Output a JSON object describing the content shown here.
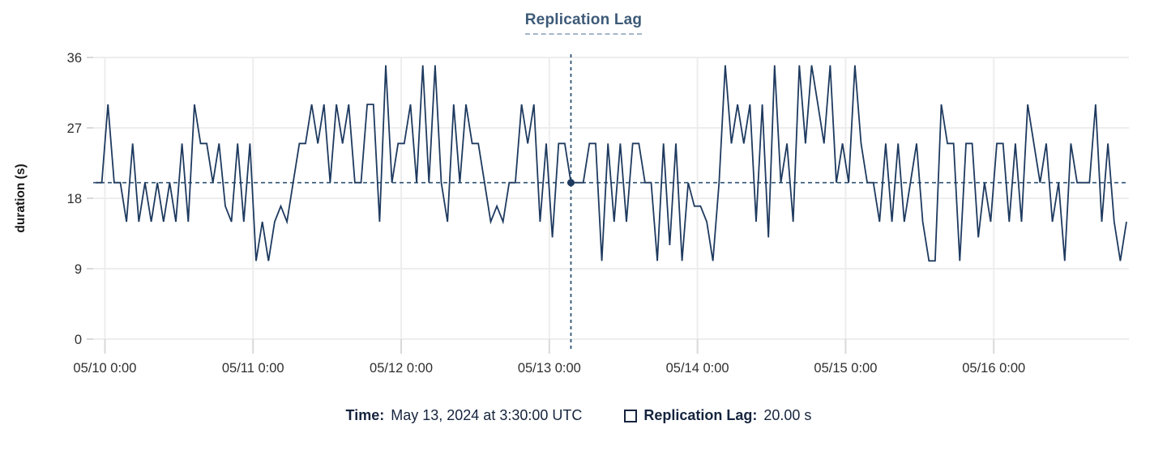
{
  "title": "Replication Lag",
  "colors": {
    "line": "#1e3a5f",
    "dot": "#1e3a5f",
    "crosshair": "#2f5373",
    "grid": "#ededed",
    "tick_stub": "#d9d9d9",
    "axis_text": "#2f2f2f",
    "title_text": "#3d5a78",
    "legend_text": "#16243e"
  },
  "tooltip": {
    "time_label": "Time:",
    "time_value": "May 13, 2024 at 3:30:00 UTC",
    "series_label": "Replication Lag:",
    "series_value": "20.00 s"
  },
  "chart_data": {
    "type": "line",
    "title": "Replication Lag",
    "xlabel": "",
    "ylabel": "duration (s)",
    "ylim": [
      0,
      36
    ],
    "y_ticks": [
      0,
      9,
      18,
      27,
      36
    ],
    "x_tick_labels": [
      "05/10 0:00",
      "05/11 0:00",
      "05/12 0:00",
      "05/13 0:00",
      "05/14 0:00",
      "05/15 0:00",
      "05/16 0:00"
    ],
    "x_tick_hours": [
      1.5,
      25.5,
      49.5,
      73.5,
      97.5,
      121.5,
      145.5
    ],
    "grid": true,
    "legend_position": "bottom",
    "series": [
      {
        "name": "Replication Lag",
        "unit": "s",
        "start": "2024-05-09 22:30 UTC",
        "interval_hours": 1,
        "values": [
          20,
          20,
          30,
          20,
          20,
          15,
          25,
          15,
          20,
          15,
          20,
          15,
          20,
          15,
          25,
          15,
          30,
          25,
          25,
          20,
          25,
          17,
          15,
          25,
          15,
          25,
          10,
          15,
          10,
          15,
          17,
          15,
          20,
          25,
          25,
          30,
          25,
          30,
          20,
          30,
          25,
          30,
          20,
          20,
          30,
          30,
          15,
          35,
          20,
          25,
          25,
          30,
          20,
          35,
          20,
          35,
          20,
          15,
          30,
          20,
          30,
          25,
          25,
          20,
          15,
          17,
          15,
          20,
          20,
          30,
          25,
          30,
          15,
          25,
          13,
          25,
          25,
          20,
          20,
          20,
          25,
          25,
          10,
          25,
          15,
          25,
          15,
          25,
          25,
          20,
          20,
          10,
          25,
          12,
          25,
          10,
          20,
          17,
          17,
          15,
          10,
          20,
          35,
          25,
          30,
          25,
          30,
          15,
          30,
          13,
          35,
          20,
          25,
          15,
          35,
          25,
          35,
          30,
          25,
          35,
          20,
          25,
          20,
          35,
          25,
          20,
          20,
          15,
          25,
          15,
          25,
          15,
          20,
          25,
          15,
          10,
          10,
          30,
          25,
          25,
          10,
          25,
          25,
          13,
          20,
          15,
          25,
          25,
          15,
          25,
          15,
          30,
          25,
          20,
          25,
          15,
          20,
          10,
          25,
          20,
          20,
          20,
          30,
          15,
          25,
          15,
          10,
          15
        ]
      }
    ],
    "crosshair": {
      "point_index": 77,
      "time": "May 13, 2024 at 3:30:00 UTC",
      "value": 20,
      "hline_value": 20
    }
  }
}
